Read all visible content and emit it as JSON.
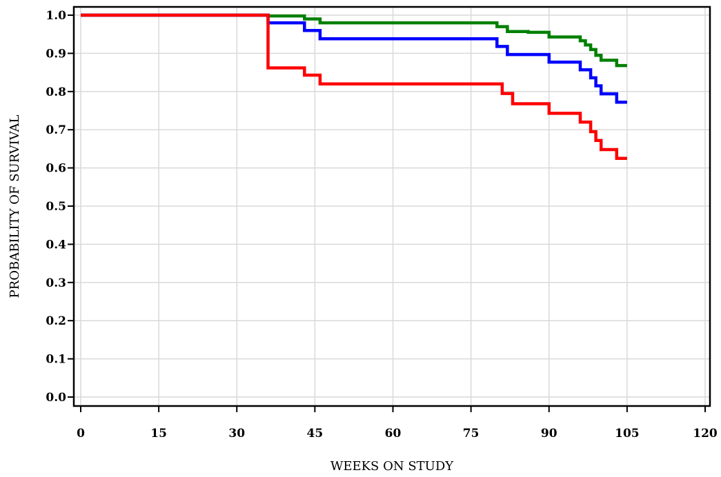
{
  "chart_data": {
    "type": "line",
    "step": true,
    "title": "",
    "xlabel": "WEEKS ON STUDY",
    "ylabel": "PROBABILITY OF SURVIVAL",
    "xlim": [
      0,
      120
    ],
    "ylim": [
      0,
      1.0
    ],
    "xticks": [
      0,
      15,
      30,
      45,
      60,
      75,
      90,
      105,
      120
    ],
    "yticks": [
      0.0,
      0.1,
      0.2,
      0.3,
      0.4,
      0.5,
      0.6,
      0.7,
      0.8,
      0.9,
      1.0
    ],
    "ytick_labels": [
      "0.0",
      "0.1",
      "0.2",
      "0.3",
      "0.4",
      "0.5",
      "0.6",
      "0.7",
      "0.8",
      "0.9",
      "1.0"
    ],
    "grid": true,
    "series": [
      {
        "color": "#008000",
        "points": [
          [
            0,
            1.0
          ],
          [
            36,
            1.0
          ],
          [
            36,
            0.998
          ],
          [
            43,
            0.998
          ],
          [
            43,
            0.99
          ],
          [
            46,
            0.99
          ],
          [
            46,
            0.98
          ],
          [
            80,
            0.98
          ],
          [
            80,
            0.97
          ],
          [
            82,
            0.97
          ],
          [
            82,
            0.957
          ],
          [
            86,
            0.957
          ],
          [
            86,
            0.955
          ],
          [
            90,
            0.955
          ],
          [
            90,
            0.943
          ],
          [
            96,
            0.943
          ],
          [
            96,
            0.933
          ],
          [
            97,
            0.933
          ],
          [
            97,
            0.922
          ],
          [
            98,
            0.922
          ],
          [
            98,
            0.91
          ],
          [
            99,
            0.91
          ],
          [
            99,
            0.895
          ],
          [
            100,
            0.895
          ],
          [
            100,
            0.882
          ],
          [
            103,
            0.882
          ],
          [
            103,
            0.868
          ],
          [
            105,
            0.868
          ]
        ]
      },
      {
        "color": "#0000ff",
        "points": [
          [
            0,
            1.0
          ],
          [
            36,
            1.0
          ],
          [
            36,
            0.98
          ],
          [
            43,
            0.98
          ],
          [
            43,
            0.96
          ],
          [
            46,
            0.96
          ],
          [
            46,
            0.938
          ],
          [
            80,
            0.938
          ],
          [
            80,
            0.918
          ],
          [
            82,
            0.918
          ],
          [
            82,
            0.897
          ],
          [
            90,
            0.897
          ],
          [
            90,
            0.877
          ],
          [
            96,
            0.877
          ],
          [
            96,
            0.857
          ],
          [
            98,
            0.857
          ],
          [
            98,
            0.836
          ],
          [
            99,
            0.836
          ],
          [
            99,
            0.815
          ],
          [
            100,
            0.815
          ],
          [
            100,
            0.794
          ],
          [
            103,
            0.794
          ],
          [
            103,
            0.772
          ],
          [
            105,
            0.772
          ]
        ]
      },
      {
        "color": "#ff0000",
        "points": [
          [
            0,
            1.0
          ],
          [
            36,
            1.0
          ],
          [
            36,
            0.862
          ],
          [
            43,
            0.862
          ],
          [
            43,
            0.843
          ],
          [
            46,
            0.843
          ],
          [
            46,
            0.82
          ],
          [
            81,
            0.82
          ],
          [
            81,
            0.795
          ],
          [
            83,
            0.795
          ],
          [
            83,
            0.768
          ],
          [
            90,
            0.768
          ],
          [
            90,
            0.743
          ],
          [
            96,
            0.743
          ],
          [
            96,
            0.72
          ],
          [
            98,
            0.72
          ],
          [
            98,
            0.695
          ],
          [
            99,
            0.695
          ],
          [
            99,
            0.672
          ],
          [
            100,
            0.672
          ],
          [
            100,
            0.648
          ],
          [
            103,
            0.648
          ],
          [
            103,
            0.625
          ],
          [
            105,
            0.625
          ]
        ]
      }
    ]
  }
}
